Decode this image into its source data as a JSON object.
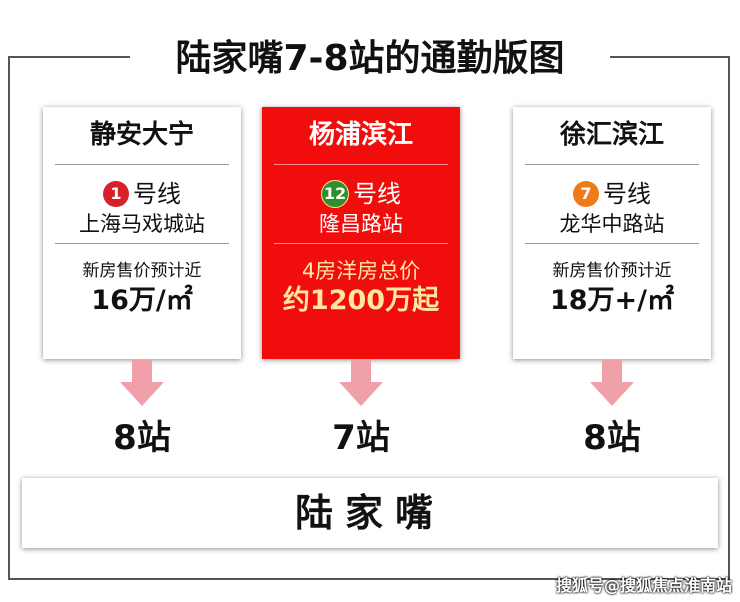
{
  "title": "陆家嘴7-8站的通勤版图",
  "cards": [
    {
      "area": "静安大宁",
      "line_num": "1",
      "line_label": "号线",
      "line_color": "#d8202a",
      "station": "上海马戏城站",
      "note": "新房售价预计近",
      "price": "16万/㎡",
      "stops": "8站"
    },
    {
      "area": "杨浦滨江",
      "line_num": "12",
      "line_label": "号线",
      "line_color": "#2f8f2a",
      "station": "隆昌路站",
      "note": "4房洋房总价",
      "price": "约1200万起",
      "stops": "7站"
    },
    {
      "area": "徐汇滨江",
      "line_num": "7",
      "line_label": "号线",
      "line_color": "#ef7a1a",
      "station": "龙华中路站",
      "note": "新房售价预计近",
      "price": "18万+/㎡",
      "stops": "8站"
    }
  ],
  "destination": "陆家嘴",
  "watermark": "搜狐号@搜狐焦点淮南站",
  "colors": {
    "highlight": "#f20d0d",
    "arrow": "#f0a0a8"
  }
}
